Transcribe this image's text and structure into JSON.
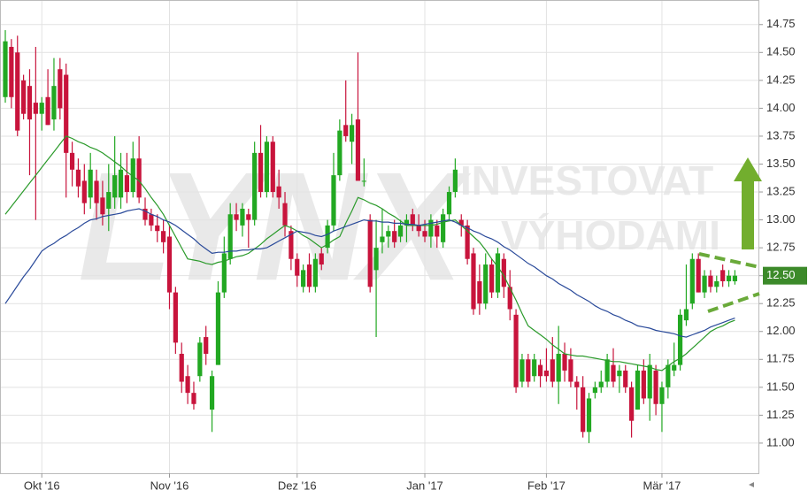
{
  "chart_data": {
    "type": "candlestick",
    "watermark": [
      "LYNX",
      "INVESTOVAT",
      "VÝHODAMI"
    ],
    "up_color": "#22a822",
    "down_color": "#c8143c",
    "ylim": [
      10.73,
      14.97
    ],
    "yticks": [
      {
        "value": 11,
        "label": "11.00"
      },
      {
        "value": 11.25,
        "label": "11.25"
      },
      {
        "value": 11.5,
        "label": "11.50"
      },
      {
        "value": 11.75,
        "label": "11.75"
      },
      {
        "value": 12,
        "label": "12.00"
      },
      {
        "value": 12.25,
        "label": "12.25"
      },
      {
        "value": 12.5,
        "label": "12.50"
      },
      {
        "value": 12.75,
        "label": "12.75"
      },
      {
        "value": 13,
        "label": "13.00"
      },
      {
        "value": 13.25,
        "label": "13.25"
      },
      {
        "value": 13.5,
        "label": "13.50"
      },
      {
        "value": 13.75,
        "label": "13.75"
      },
      {
        "value": 14,
        "label": "14.00"
      },
      {
        "value": 14.25,
        "label": "14.25"
      },
      {
        "value": 14.5,
        "label": "14.50"
      },
      {
        "value": 14.75,
        "label": "14.75"
      }
    ],
    "grid": true,
    "last_price": {
      "value": 12.5,
      "label": "12.50",
      "color": "#3c8a2a"
    },
    "categories": [
      null,
      null,
      null,
      null,
      null,
      null,
      "Okt '16",
      null,
      null,
      null,
      null,
      null,
      null,
      null,
      null,
      null,
      null,
      null,
      null,
      null,
      null,
      null,
      null,
      null,
      null,
      null,
      null,
      "Nov '16",
      null,
      null,
      null,
      null,
      null,
      null,
      null,
      null,
      null,
      null,
      null,
      null,
      null,
      null,
      null,
      null,
      null,
      null,
      null,
      null,
      "Dez '16",
      null,
      null,
      null,
      null,
      null,
      null,
      null,
      null,
      null,
      null,
      null,
      null,
      null,
      null,
      null,
      null,
      null,
      null,
      null,
      null,
      "Jan '17",
      null,
      null,
      null,
      null,
      null,
      null,
      null,
      null,
      null,
      null,
      null,
      null,
      null,
      null,
      null,
      null,
      null,
      null,
      null,
      "Feb '17",
      null,
      null,
      null,
      null,
      null,
      null,
      null,
      null,
      null,
      null,
      null,
      null,
      null,
      null,
      null,
      null,
      null,
      null,
      "Mär '17",
      null,
      null,
      null,
      null,
      null,
      null,
      null,
      null,
      null,
      null,
      null,
      null
    ],
    "ohlc": [
      [
        14.1,
        14.7,
        14.05,
        14.6
      ],
      [
        14.55,
        14.62,
        14.0,
        14.1
      ],
      [
        14.5,
        14.65,
        13.75,
        13.8
      ],
      [
        14.25,
        14.3,
        13.9,
        13.95
      ],
      [
        14.2,
        14.35,
        13.4,
        13.9
      ],
      [
        14.05,
        14.55,
        13.0,
        13.95
      ],
      [
        13.95,
        14.1,
        13.8,
        14.05
      ],
      [
        14.1,
        14.35,
        13.85,
        13.85
      ],
      [
        13.9,
        14.45,
        13.8,
        14.2
      ],
      [
        14.35,
        14.45,
        13.9,
        14.0
      ],
      [
        14.3,
        14.4,
        13.2,
        13.6
      ],
      [
        13.6,
        13.7,
        13.3,
        13.45
      ],
      [
        13.45,
        13.55,
        13.2,
        13.3
      ],
      [
        13.35,
        13.5,
        13.05,
        13.15
      ],
      [
        13.2,
        13.6,
        13.1,
        13.45
      ],
      [
        13.35,
        13.45,
        13.0,
        13.15
      ],
      [
        13.2,
        13.35,
        12.95,
        13.05
      ],
      [
        13.1,
        13.5,
        12.9,
        13.25
      ],
      [
        13.2,
        13.75,
        13.1,
        13.4
      ],
      [
        13.2,
        13.6,
        13.1,
        13.45
      ],
      [
        13.4,
        13.6,
        13.15,
        13.25
      ],
      [
        13.25,
        13.7,
        13.2,
        13.55
      ],
      [
        13.55,
        13.75,
        13.15,
        13.2
      ],
      [
        13.1,
        13.2,
        12.95,
        13.0
      ],
      [
        13.05,
        13.1,
        12.9,
        12.95
      ],
      [
        12.95,
        13.05,
        12.8,
        12.9
      ],
      [
        12.9,
        13.0,
        12.7,
        12.8
      ],
      [
        12.85,
        12.95,
        12.2,
        12.35
      ],
      [
        12.35,
        12.4,
        11.8,
        11.9
      ],
      [
        11.8,
        11.9,
        11.45,
        11.55
      ],
      [
        11.6,
        11.7,
        11.35,
        11.45
      ],
      [
        11.45,
        11.55,
        11.3,
        11.35
      ],
      [
        11.6,
        11.95,
        11.55,
        11.9
      ],
      [
        11.95,
        12.05,
        11.7,
        11.8
      ],
      [
        11.3,
        11.65,
        11.1,
        11.6
      ],
      [
        11.7,
        12.45,
        11.7,
        12.35
      ],
      [
        12.35,
        12.85,
        12.3,
        12.7
      ],
      [
        12.65,
        13.15,
        12.6,
        13.05
      ],
      [
        13.05,
        13.15,
        12.9,
        13.0
      ],
      [
        12.95,
        13.15,
        12.85,
        13.1
      ],
      [
        13.05,
        13.1,
        12.75,
        13.0
      ],
      [
        13.0,
        13.7,
        12.95,
        13.6
      ],
      [
        13.6,
        13.85,
        13.2,
        13.25
      ],
      [
        13.25,
        13.75,
        13.2,
        13.7
      ],
      [
        13.7,
        13.75,
        13.2,
        13.25
      ],
      [
        13.3,
        13.45,
        13.1,
        13.2
      ],
      [
        13.15,
        13.25,
        12.85,
        12.95
      ],
      [
        12.9,
        12.95,
        12.55,
        12.65
      ],
      [
        12.65,
        12.7,
        12.4,
        12.5
      ],
      [
        12.4,
        12.6,
        12.35,
        12.55
      ],
      [
        12.6,
        12.7,
        12.35,
        12.4
      ],
      [
        12.4,
        12.7,
        12.35,
        12.65
      ],
      [
        12.7,
        12.75,
        12.55,
        12.6
      ],
      [
        12.75,
        13.0,
        12.7,
        12.95
      ],
      [
        12.95,
        13.6,
        12.9,
        13.4
      ],
      [
        13.4,
        13.9,
        13.35,
        13.8
      ],
      [
        13.85,
        14.25,
        13.7,
        13.75
      ],
      [
        13.7,
        13.95,
        13.5,
        13.85
      ],
      [
        13.9,
        14.5,
        13.35,
        13.35
      ],
      [
        13.35,
        13.55,
        13.3,
        13.35
      ],
      [
        13.0,
        13.05,
        12.35,
        12.4
      ],
      [
        12.55,
        13.0,
        11.95,
        12.75
      ],
      [
        12.8,
        13.1,
        12.7,
        12.85
      ],
      [
        12.85,
        12.95,
        12.75,
        12.9
      ],
      [
        12.9,
        13.0,
        12.75,
        12.8
      ],
      [
        12.85,
        13.0,
        12.8,
        12.95
      ],
      [
        12.95,
        13.05,
        12.8,
        13.0
      ],
      [
        13.05,
        13.1,
        12.9,
        12.95
      ],
      [
        12.95,
        13.05,
        12.85,
        12.9
      ],
      [
        12.9,
        13.0,
        12.8,
        12.85
      ],
      [
        12.85,
        13.05,
        12.75,
        13.0
      ],
      [
        12.95,
        13.0,
        12.75,
        12.85
      ],
      [
        12.8,
        13.1,
        12.75,
        13.05
      ],
      [
        13.05,
        13.3,
        13.0,
        13.25
      ],
      [
        13.25,
        13.55,
        13.2,
        13.45
      ],
      [
        13.0,
        13.05,
        12.85,
        12.95
      ],
      [
        12.95,
        13.0,
        12.6,
        12.65
      ],
      [
        12.7,
        12.75,
        12.15,
        12.2
      ],
      [
        12.45,
        12.6,
        12.15,
        12.25
      ],
      [
        12.25,
        12.7,
        12.2,
        12.6
      ],
      [
        12.6,
        12.65,
        12.3,
        12.35
      ],
      [
        12.35,
        12.75,
        12.3,
        12.7
      ],
      [
        12.65,
        12.7,
        12.3,
        12.4
      ],
      [
        12.4,
        12.55,
        12.1,
        12.2
      ],
      [
        12.15,
        12.2,
        11.45,
        11.5
      ],
      [
        11.55,
        11.8,
        11.5,
        11.75
      ],
      [
        11.75,
        11.8,
        11.5,
        11.55
      ],
      [
        11.6,
        11.8,
        11.55,
        11.75
      ],
      [
        11.7,
        11.75,
        11.5,
        11.6
      ],
      [
        11.65,
        11.85,
        11.55,
        11.6
      ],
      [
        11.75,
        11.95,
        11.5,
        11.55
      ],
      [
        11.55,
        12.05,
        11.35,
        11.8
      ],
      [
        11.8,
        11.9,
        11.55,
        11.65
      ],
      [
        11.75,
        11.85,
        11.5,
        11.55
      ],
      [
        11.55,
        11.6,
        11.3,
        11.5
      ],
      [
        11.5,
        11.6,
        11.05,
        11.1
      ],
      [
        11.1,
        11.45,
        11.0,
        11.4
      ],
      [
        11.45,
        11.55,
        11.4,
        11.5
      ],
      [
        11.5,
        11.65,
        11.45,
        11.55
      ],
      [
        11.55,
        11.8,
        11.5,
        11.75
      ],
      [
        11.7,
        11.85,
        11.5,
        11.55
      ],
      [
        11.6,
        11.7,
        11.45,
        11.65
      ],
      [
        11.65,
        11.7,
        11.45,
        11.5
      ],
      [
        11.5,
        11.55,
        11.05,
        11.2
      ],
      [
        11.3,
        11.7,
        11.3,
        11.65
      ],
      [
        11.65,
        11.75,
        11.35,
        11.4
      ],
      [
        11.4,
        11.8,
        11.2,
        11.7
      ],
      [
        11.65,
        11.7,
        11.25,
        11.35
      ],
      [
        11.35,
        11.55,
        11.1,
        11.5
      ],
      [
        11.5,
        11.75,
        11.4,
        11.7
      ],
      [
        11.65,
        11.9,
        11.6,
        11.7
      ],
      [
        11.7,
        12.2,
        11.65,
        12.15
      ],
      [
        12.1,
        12.6,
        12.05,
        12.2
      ],
      [
        12.25,
        12.7,
        12.2,
        12.65
      ],
      [
        12.65,
        12.7,
        12.35,
        12.35
      ],
      [
        12.35,
        12.55,
        12.3,
        12.5
      ],
      [
        12.5,
        12.55,
        12.35,
        12.4
      ],
      [
        12.4,
        12.5,
        12.35,
        12.45
      ],
      [
        12.55,
        12.6,
        12.4,
        12.45
      ],
      [
        12.45,
        12.55,
        12.4,
        12.5
      ],
      [
        12.45,
        12.55,
        12.42,
        12.5
      ]
    ],
    "lines": [
      {
        "color": "#2a9a2a",
        "values": [
          13.05,
          13.12,
          13.19,
          13.26,
          13.33,
          13.4,
          13.47,
          13.54,
          13.61,
          13.68,
          13.75,
          13.73,
          13.7,
          13.68,
          13.65,
          13.63,
          13.6,
          13.56,
          13.52,
          13.48,
          13.43,
          13.39,
          13.35,
          13.28,
          13.2,
          13.13,
          13.05,
          12.95,
          12.85,
          12.75,
          12.65,
          12.64,
          12.63,
          12.61,
          12.6,
          12.62,
          12.63,
          12.65,
          12.67,
          12.68,
          12.7,
          12.74,
          12.78,
          12.83,
          12.87,
          12.91,
          12.95,
          12.93,
          12.9,
          12.86,
          12.83,
          12.79,
          12.75,
          12.78,
          12.82,
          12.85,
          12.97,
          13.08,
          13.2,
          13.18,
          13.15,
          13.13,
          13.1,
          13.06,
          13.03,
          12.99,
          12.95,
          12.95,
          12.95,
          12.95,
          12.95,
          12.96,
          12.98,
          12.99,
          13.0,
          12.95,
          12.9,
          12.85,
          12.8,
          12.73,
          12.65,
          12.58,
          12.5,
          12.39,
          12.28,
          12.16,
          12.05,
          12.01,
          11.97,
          11.93,
          11.88,
          11.84,
          11.8,
          11.79,
          11.78,
          11.78,
          11.77,
          11.76,
          11.75,
          11.74,
          11.73,
          11.73,
          11.72,
          11.71,
          11.7,
          11.69,
          11.68,
          11.66,
          11.65,
          11.69,
          11.73,
          11.76,
          11.8,
          11.85,
          11.9,
          11.95,
          12.0,
          12.03,
          12.05,
          12.08,
          12.1
        ]
      },
      {
        "color": "#2a4a9a",
        "values": [
          12.25,
          12.33,
          12.41,
          12.49,
          12.56,
          12.64,
          12.72,
          12.76,
          12.79,
          12.83,
          12.86,
          12.9,
          12.93,
          12.97,
          13.0,
          13.01,
          13.03,
          13.04,
          13.05,
          13.06,
          13.08,
          13.09,
          13.1,
          13.08,
          13.05,
          13.03,
          13.0,
          12.98,
          12.95,
          12.91,
          12.87,
          12.83,
          12.78,
          12.74,
          12.7,
          12.71,
          12.71,
          12.72,
          12.72,
          12.73,
          12.73,
          12.74,
          12.74,
          12.75,
          12.78,
          12.81,
          12.84,
          12.87,
          12.9,
          12.89,
          12.88,
          12.86,
          12.85,
          12.87,
          12.9,
          12.92,
          12.94,
          12.96,
          12.98,
          13.0,
          12.99,
          12.99,
          12.98,
          12.98,
          12.97,
          12.97,
          12.96,
          12.96,
          12.95,
          12.96,
          12.97,
          12.98,
          12.99,
          13.0,
          12.98,
          12.95,
          12.93,
          12.9,
          12.88,
          12.85,
          12.83,
          12.8,
          12.76,
          12.73,
          12.69,
          12.65,
          12.61,
          12.58,
          12.54,
          12.5,
          12.47,
          12.43,
          12.4,
          12.37,
          12.33,
          12.3,
          12.27,
          12.23,
          12.2,
          12.18,
          12.15,
          12.13,
          12.1,
          12.08,
          12.05,
          12.04,
          12.03,
          12.01,
          12.0,
          11.99,
          11.98,
          11.96,
          11.95,
          11.97,
          11.99,
          12.01,
          12.04,
          12.06,
          12.08,
          12.1,
          12.12
        ]
      }
    ]
  }
}
